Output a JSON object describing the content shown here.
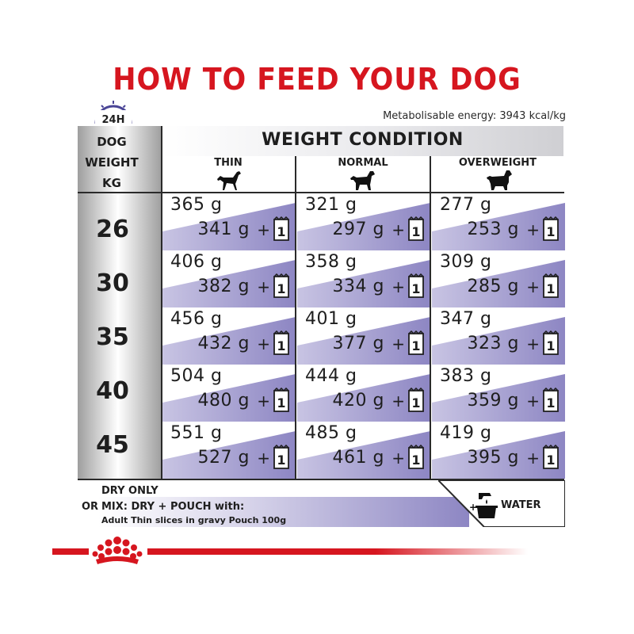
{
  "title": "HOW TO FEED YOUR DOG",
  "clock_label": "24H",
  "energy": "Metabolisable energy: 3943 kcal/kg",
  "row_header": [
    "DOG",
    "WEIGHT",
    "KG"
  ],
  "weight_condition": "WEIGHT CONDITION",
  "columns": [
    "THIN",
    "NORMAL",
    "OVERWEIGHT"
  ],
  "unit": "g",
  "plus": "+",
  "pouch_count": "1",
  "rows": [
    {
      "weight": "26",
      "cells": [
        {
          "dry": "365 g",
          "mix": "341 g"
        },
        {
          "dry": "321 g",
          "mix": "297 g"
        },
        {
          "dry": "277 g",
          "mix": "253 g"
        }
      ]
    },
    {
      "weight": "30",
      "cells": [
        {
          "dry": "406 g",
          "mix": "382 g"
        },
        {
          "dry": "358 g",
          "mix": "334 g"
        },
        {
          "dry": "309 g",
          "mix": "285 g"
        }
      ]
    },
    {
      "weight": "35",
      "cells": [
        {
          "dry": "456 g",
          "mix": "432 g"
        },
        {
          "dry": "401 g",
          "mix": "377 g"
        },
        {
          "dry": "347 g",
          "mix": "323 g"
        }
      ]
    },
    {
      "weight": "40",
      "cells": [
        {
          "dry": "504 g",
          "mix": "480 g"
        },
        {
          "dry": "444 g",
          "mix": "420 g"
        },
        {
          "dry": "383 g",
          "mix": "359 g"
        }
      ]
    },
    {
      "weight": "45",
      "cells": [
        {
          "dry": "551 g",
          "mix": "527 g"
        },
        {
          "dry": "485 g",
          "mix": "461 g"
        },
        {
          "dry": "419 g",
          "mix": "395 g"
        }
      ]
    }
  ],
  "legend": {
    "dry_only": "DRY ONLY",
    "or": "OR",
    "mix": "MIX: DRY + POUCH with:",
    "pouch": "Adult Thin slices in gravy Pouch 100g",
    "water": "WATER"
  },
  "colors": {
    "brand_red": "#d6161f",
    "lavender": "#8d86c3"
  },
  "icons": [
    "clock-icon",
    "thin-dog-icon",
    "normal-dog-icon",
    "overweight-dog-icon",
    "pouch-icon",
    "water-bowl-icon",
    "royal-canin-crown-logo"
  ]
}
